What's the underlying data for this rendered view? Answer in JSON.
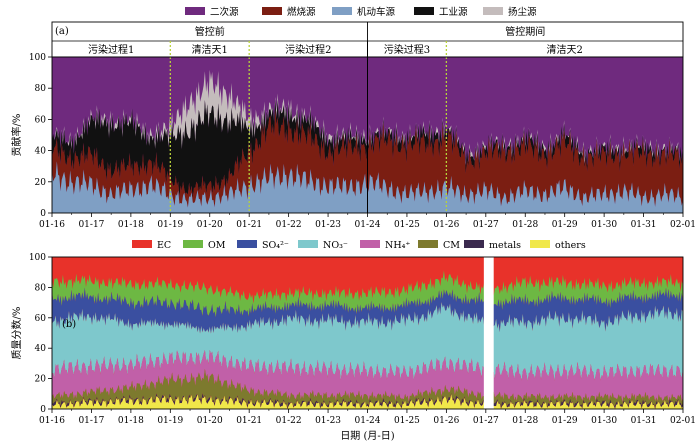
{
  "chart_data": [
    {
      "type": "area",
      "panel_label": "(a)",
      "ylabel": "贡献率/%",
      "ylim": [
        0,
        100
      ],
      "yticks": [
        0,
        20,
        40,
        60,
        80,
        100
      ],
      "x_tick_labels": [
        "01-16",
        "01-17",
        "01-18",
        "01-19",
        "01-20",
        "01-21",
        "01-22",
        "01-23",
        "01-24",
        "01-25",
        "01-26",
        "01-27",
        "01-28",
        "01-29",
        "01-30",
        "01-31",
        "02-01"
      ],
      "x_range_days": [
        16,
        32
      ],
      "periods": [
        {
          "label": "管控前",
          "start": 16,
          "end": 24
        },
        {
          "label": "管控期间",
          "start": 24,
          "end": 32
        }
      ],
      "episodes": [
        {
          "label": "污染过程1",
          "start": 16,
          "end": 19
        },
        {
          "label": "清洁天1",
          "start": 19,
          "end": 21
        },
        {
          "label": "污染过程2",
          "start": 21,
          "end": 24
        },
        {
          "label": "污染过程3",
          "start": 24,
          "end": 26
        },
        {
          "label": "清洁天2",
          "start": 26,
          "end": 32
        }
      ],
      "series_order_bottom_to_top": [
        "机动车源",
        "燃烧源",
        "工业源",
        "扬尘源",
        "二次源"
      ],
      "series": [
        {
          "name": "二次源",
          "color": "#6f2a7e",
          "role": "remainder"
        },
        {
          "name": "燃烧源",
          "color": "#7b1e12",
          "x": [
            16.0,
            16.5,
            17.0,
            17.5,
            18.0,
            18.5,
            19.0,
            19.5,
            20.0,
            20.5,
            21.0,
            21.5,
            22.0,
            22.5,
            23.0,
            23.5,
            24.0,
            24.5,
            25.0,
            25.5,
            26.0,
            26.5,
            27.0,
            27.5,
            28.0,
            28.5,
            29.0,
            29.5,
            30.0,
            30.5,
            31.0,
            31.5,
            32.0
          ],
          "values": [
            15,
            16,
            18,
            16,
            14,
            15,
            10,
            6,
            8,
            10,
            22,
            32,
            30,
            28,
            22,
            25,
            24,
            30,
            32,
            30,
            33,
            22,
            24,
            30,
            28,
            26,
            28,
            26,
            24,
            25,
            27,
            26,
            24
          ]
        },
        {
          "name": "机动车源",
          "color": "#7f9fc4",
          "x": [
            16.0,
            16.5,
            17.0,
            17.5,
            18.0,
            18.5,
            19.0,
            19.5,
            20.0,
            20.5,
            21.0,
            21.5,
            22.0,
            22.5,
            23.0,
            23.5,
            24.0,
            24.5,
            25.0,
            25.5,
            26.0,
            26.5,
            27.0,
            27.5,
            28.0,
            28.5,
            29.0,
            29.5,
            30.0,
            30.5,
            31.0,
            31.5,
            32.0
          ],
          "values": [
            25,
            20,
            18,
            12,
            15,
            18,
            12,
            8,
            10,
            12,
            18,
            22,
            25,
            20,
            18,
            16,
            20,
            16,
            12,
            14,
            16,
            12,
            14,
            10,
            14,
            12,
            16,
            10,
            12,
            14,
            10,
            12,
            10
          ]
        },
        {
          "name": "工业源",
          "color": "#111111",
          "x": [
            16.0,
            16.5,
            17.0,
            17.5,
            18.0,
            18.5,
            19.0,
            19.5,
            20.0,
            20.5,
            21.0,
            21.5,
            22.0,
            22.5,
            23.0,
            23.5,
            24.0,
            24.5,
            25.0,
            25.5,
            26.0,
            26.5,
            27.0,
            27.5,
            28.0,
            28.5,
            29.0,
            29.5,
            30.0,
            30.5,
            31.0,
            31.5,
            32.0
          ],
          "values": [
            8,
            10,
            22,
            30,
            28,
            16,
            26,
            40,
            45,
            38,
            14,
            8,
            10,
            10,
            8,
            6,
            5,
            4,
            5,
            6,
            5,
            3,
            4,
            3,
            5,
            4,
            5,
            3,
            4,
            3,
            4,
            3,
            3
          ]
        },
        {
          "name": "扬尘源",
          "color": "#c4bcbc",
          "x": [
            16.0,
            16.5,
            17.0,
            17.5,
            18.0,
            18.5,
            19.0,
            19.5,
            20.0,
            20.5,
            21.0,
            21.5,
            22.0,
            22.5,
            23.0,
            23.5,
            24.0,
            24.5,
            25.0,
            25.5,
            26.0,
            26.5,
            27.0,
            27.5,
            28.0,
            28.5,
            29.0,
            29.5,
            30.0,
            30.5,
            31.0,
            31.5,
            32.0
          ],
          "values": [
            1,
            1,
            2,
            2,
            2,
            2,
            6,
            18,
            20,
            16,
            6,
            3,
            3,
            2,
            2,
            2,
            1,
            1,
            1,
            1,
            1,
            1,
            1,
            1,
            1,
            1,
            1,
            1,
            1,
            1,
            1,
            1,
            1
          ]
        }
      ]
    },
    {
      "type": "area",
      "panel_label": "(b)",
      "ylabel": "质量分数/%",
      "xlabel": "日期 (月-日)",
      "ylim": [
        0,
        100
      ],
      "yticks": [
        0,
        20,
        40,
        60,
        80,
        100
      ],
      "x_tick_labels": [
        "01-16",
        "01-17",
        "01-18",
        "01-19",
        "01-20",
        "01-21",
        "01-22",
        "01-23",
        "01-24",
        "01-25",
        "01-26",
        "01-27",
        "01-28",
        "01-29",
        "01-30",
        "01-31",
        "02-01"
      ],
      "x_range_days": [
        16,
        32
      ],
      "data_gap": [
        26.95,
        27.2
      ],
      "series_order_bottom_to_top": [
        "others",
        "metals",
        "CM",
        "NH₄⁺",
        "NO₃⁻",
        "SO₄²⁻",
        "OM",
        "EC"
      ],
      "series": [
        {
          "name": "EC",
          "color": "#e8322a",
          "role": "remainder"
        },
        {
          "name": "OM",
          "color": "#6db843",
          "x": [
            16,
            17,
            18,
            19,
            20,
            21,
            22,
            23,
            24,
            25,
            26,
            27,
            28,
            29,
            30,
            31,
            32
          ],
          "values": [
            11,
            10,
            12,
            12,
            14,
            9,
            8,
            8,
            10,
            10,
            11,
            8,
            12,
            10,
            10,
            9,
            8
          ]
        },
        {
          "name": "SO₄²⁻",
          "color": "#3a4fa0",
          "x": [
            16,
            17,
            18,
            19,
            20,
            21,
            22,
            23,
            24,
            25,
            26,
            27,
            28,
            29,
            30,
            31,
            32
          ],
          "values": [
            15,
            13,
            14,
            14,
            13,
            10,
            9,
            10,
            9,
            10,
            9,
            14,
            14,
            13,
            14,
            12,
            12
          ]
        },
        {
          "name": "NO₃⁻",
          "color": "#7ec8cc",
          "x": [
            16,
            17,
            18,
            19,
            20,
            21,
            22,
            23,
            24,
            25,
            26,
            27,
            28,
            29,
            30,
            31,
            32
          ],
          "values": [
            32,
            33,
            27,
            23,
            18,
            27,
            32,
            32,
            32,
            34,
            36,
            30,
            33,
            35,
            33,
            37,
            38
          ]
        },
        {
          "name": "NH₄⁺",
          "color": "#c160a8",
          "x": [
            16,
            17,
            18,
            19,
            20,
            21,
            22,
            23,
            24,
            25,
            26,
            27,
            28,
            29,
            30,
            31,
            32
          ],
          "values": [
            18,
            17,
            15,
            14,
            13,
            16,
            18,
            17,
            16,
            16,
            17,
            17,
            16,
            17,
            16,
            17,
            18
          ]
        },
        {
          "name": "CM",
          "color": "#7d7a2e",
          "x": [
            16,
            17,
            18,
            19,
            20,
            21,
            22,
            23,
            24,
            25,
            26,
            27,
            28,
            29,
            30,
            31,
            32
          ],
          "values": [
            4,
            6,
            8,
            12,
            14,
            7,
            5,
            5,
            5,
            4,
            6,
            5,
            4,
            4,
            4,
            4,
            3
          ]
        },
        {
          "name": "metals",
          "color": "#3b2a4f",
          "x": [
            16,
            17,
            18,
            19,
            20,
            21,
            22,
            23,
            24,
            25,
            26,
            27,
            28,
            29,
            30,
            31,
            32
          ],
          "values": [
            1,
            1,
            1,
            1,
            1,
            1,
            1,
            1,
            1,
            1,
            1,
            1,
            1,
            1,
            1,
            1,
            1
          ]
        },
        {
          "name": "others",
          "color": "#f0e84a",
          "x": [
            16,
            17,
            18,
            19,
            20,
            21,
            22,
            23,
            24,
            25,
            26,
            27,
            28,
            29,
            30,
            31,
            32
          ],
          "values": [
            3,
            4,
            5,
            6,
            6,
            4,
            3,
            3,
            3,
            3,
            6,
            3,
            3,
            3,
            3,
            3,
            3
          ]
        }
      ]
    }
  ]
}
